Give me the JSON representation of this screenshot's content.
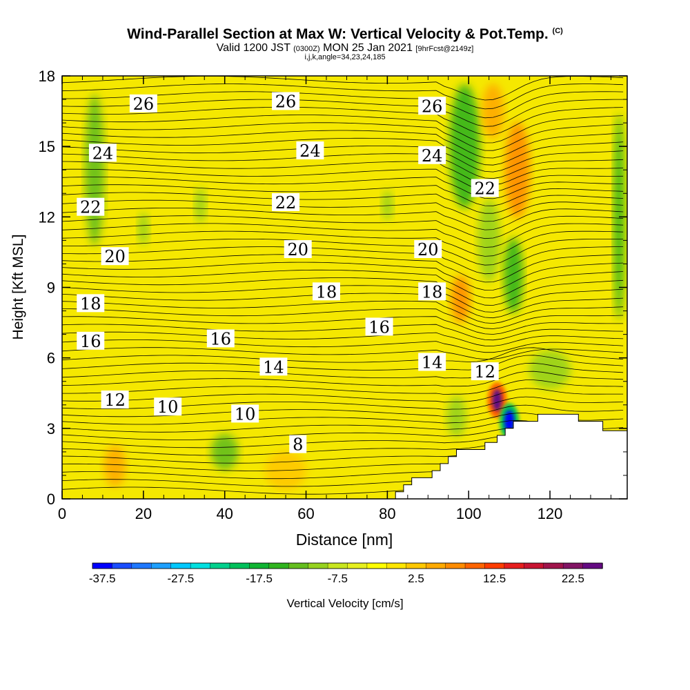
{
  "title": {
    "main": "Wind-Parallel Section at Max W: Vertical Velocity & Pot.Temp.",
    "copyright": "(C)",
    "valid_a": "Valid 1200 JST",
    "valid_zulu": "(0300Z)",
    "valid_b": "MON 25 Jan 2021",
    "forecast": "[9hrFcst@2149z]",
    "indices": "i,j,k,angle=34,23,24,185"
  },
  "colorbar": {
    "label": "Vertical Velocity [cm/s]",
    "tick_labels": [
      "-37.5",
      "-27.5",
      "-17.5",
      "-7.5",
      "2.5",
      "12.5",
      "22.5"
    ],
    "colors": [
      "#0000ff",
      "#1a4dff",
      "#1e78ff",
      "#1ea0ff",
      "#00c8ff",
      "#00e0e0",
      "#00d08c",
      "#00c05a",
      "#10b432",
      "#30b41e",
      "#64be1e",
      "#96d21e",
      "#c8e61e",
      "#e6f01e",
      "#ffff00",
      "#ffe600",
      "#ffc800",
      "#ffaa00",
      "#ff8c00",
      "#ff6400",
      "#ff3c00",
      "#e61e1e",
      "#c81432",
      "#a0144b",
      "#821464",
      "#640a82"
    ]
  },
  "chart_data": {
    "type": "heatmap",
    "xlabel": "Distance [nm]",
    "ylabel": "Height [Kft MSL]",
    "xlim": [
      0,
      139
    ],
    "ylim": [
      0,
      18
    ],
    "xticks": [
      "0",
      "20",
      "40",
      "60",
      "80",
      "100",
      "120"
    ],
    "yticks": [
      "0",
      "3",
      "6",
      "9",
      "12",
      "15",
      "18"
    ],
    "x_tick_values": [
      0,
      20,
      40,
      60,
      80,
      100,
      120
    ],
    "y_tick_values": [
      0,
      3,
      6,
      9,
      12,
      15,
      18
    ],
    "field": "Vertical Velocity [cm/s]",
    "colorbar_range": [
      -40,
      30
    ],
    "background_value": 0,
    "features": [
      {
        "kind": "updraft",
        "x": 107,
        "y": 4.2,
        "peak": 27.5
      },
      {
        "kind": "downdraft",
        "x": 110,
        "y": 3.3,
        "peak": -37.5
      },
      {
        "kind": "updraft",
        "x": 13,
        "y": 1.4,
        "peak": 7.5
      },
      {
        "kind": "downdraft",
        "x": 40,
        "y": 2.0,
        "peak": -12.5
      },
      {
        "kind": "downdraft",
        "x": 100,
        "y": 15.0,
        "peak": -15
      },
      {
        "kind": "downdraft",
        "x": 110,
        "y": 10.0,
        "peak": -15
      },
      {
        "kind": "updraft",
        "x": 111,
        "y": 14.0,
        "peak": 10
      },
      {
        "kind": "updraft",
        "x": 98,
        "y": 8.5,
        "peak": 10
      }
    ],
    "terrain": [
      [
        82,
        0
      ],
      [
        82,
        0.3
      ],
      [
        84,
        0.3
      ],
      [
        84,
        0.6
      ],
      [
        86,
        0.6
      ],
      [
        86,
        0.9
      ],
      [
        91,
        0.9
      ],
      [
        91,
        1.2
      ],
      [
        93,
        1.2
      ],
      [
        93,
        1.5
      ],
      [
        95,
        1.5
      ],
      [
        95,
        1.8
      ],
      [
        97,
        1.8
      ],
      [
        97,
        2.1
      ],
      [
        104,
        2.1
      ],
      [
        104,
        2.4
      ],
      [
        107,
        2.4
      ],
      [
        107,
        2.7
      ],
      [
        109,
        2.7
      ],
      [
        109,
        3.0
      ],
      [
        111,
        3.0
      ],
      [
        111,
        3.3
      ],
      [
        117,
        3.3
      ],
      [
        117,
        3.6
      ],
      [
        127,
        3.6
      ],
      [
        127,
        3.3
      ],
      [
        133,
        3.3
      ],
      [
        133,
        2.9
      ],
      [
        139,
        2.9
      ],
      [
        139,
        0
      ]
    ],
    "potential_temperature_labels": [
      {
        "text": "26",
        "x": 20,
        "y": 16.8
      },
      {
        "text": "26",
        "x": 55,
        "y": 16.9
      },
      {
        "text": "26",
        "x": 91,
        "y": 16.7
      },
      {
        "text": "24",
        "x": 10,
        "y": 14.7
      },
      {
        "text": "24",
        "x": 61,
        "y": 14.8
      },
      {
        "text": "24",
        "x": 91,
        "y": 14.6
      },
      {
        "text": "22",
        "x": 7,
        "y": 12.4
      },
      {
        "text": "22",
        "x": 55,
        "y": 12.6
      },
      {
        "text": "22",
        "x": 104,
        "y": 13.2
      },
      {
        "text": "20",
        "x": 13,
        "y": 10.3
      },
      {
        "text": "20",
        "x": 58,
        "y": 10.6
      },
      {
        "text": "20",
        "x": 90,
        "y": 10.6
      },
      {
        "text": "18",
        "x": 7,
        "y": 8.3
      },
      {
        "text": "18",
        "x": 65,
        "y": 8.8
      },
      {
        "text": "18",
        "x": 91,
        "y": 8.8
      },
      {
        "text": "16",
        "x": 7,
        "y": 6.7
      },
      {
        "text": "16",
        "x": 39,
        "y": 6.8
      },
      {
        "text": "16",
        "x": 78,
        "y": 7.3
      },
      {
        "text": "14",
        "x": 52,
        "y": 5.6
      },
      {
        "text": "14",
        "x": 91,
        "y": 5.8
      },
      {
        "text": "12",
        "x": 13,
        "y": 4.2
      },
      {
        "text": "12",
        "x": 104,
        "y": 5.4
      },
      {
        "text": "10",
        "x": 26,
        "y": 3.9
      },
      {
        "text": "10",
        "x": 45,
        "y": 3.6
      },
      {
        "text": "8",
        "x": 58,
        "y": 2.3
      }
    ]
  }
}
